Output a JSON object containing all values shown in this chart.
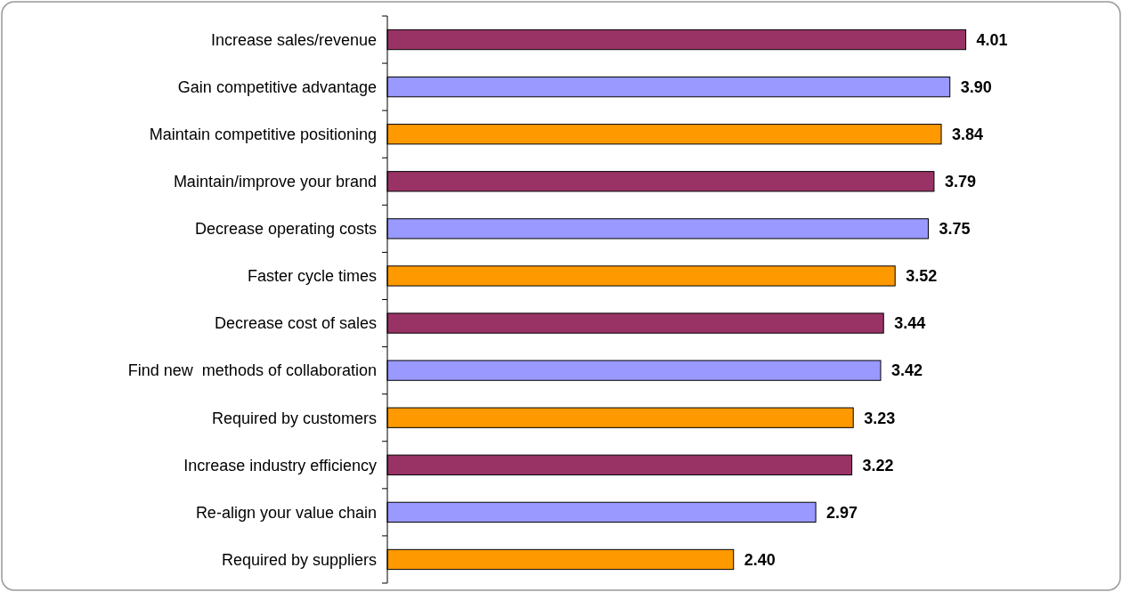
{
  "chart_data": {
    "type": "bar",
    "orientation": "horizontal",
    "categories": [
      "Increase sales/revenue",
      "Gain competitive advantage",
      "Maintain competitive positioning",
      "Maintain/improve your brand",
      "Decrease operating costs",
      "Faster cycle times",
      "Decrease cost of sales",
      "Find new  methods of collaboration",
      "Required by customers",
      "Increase industry efficiency",
      "Re-align your value chain",
      "Required by suppliers"
    ],
    "values": [
      4.01,
      3.9,
      3.84,
      3.79,
      3.75,
      3.52,
      3.44,
      3.42,
      3.23,
      3.22,
      2.97,
      2.4
    ],
    "value_labels": [
      "4.01",
      "3.90",
      "3.84",
      "3.79",
      "3.75",
      "3.52",
      "3.44",
      "3.42",
      "3.23",
      "3.22",
      "2.97",
      "2.40"
    ],
    "colors": [
      "#993366",
      "#9999ff",
      "#ff9900",
      "#993366",
      "#9999ff",
      "#ff9900",
      "#993366",
      "#9999ff",
      "#ff9900",
      "#993366",
      "#9999ff",
      "#ff9900"
    ],
    "tick_labels": "y"
  }
}
